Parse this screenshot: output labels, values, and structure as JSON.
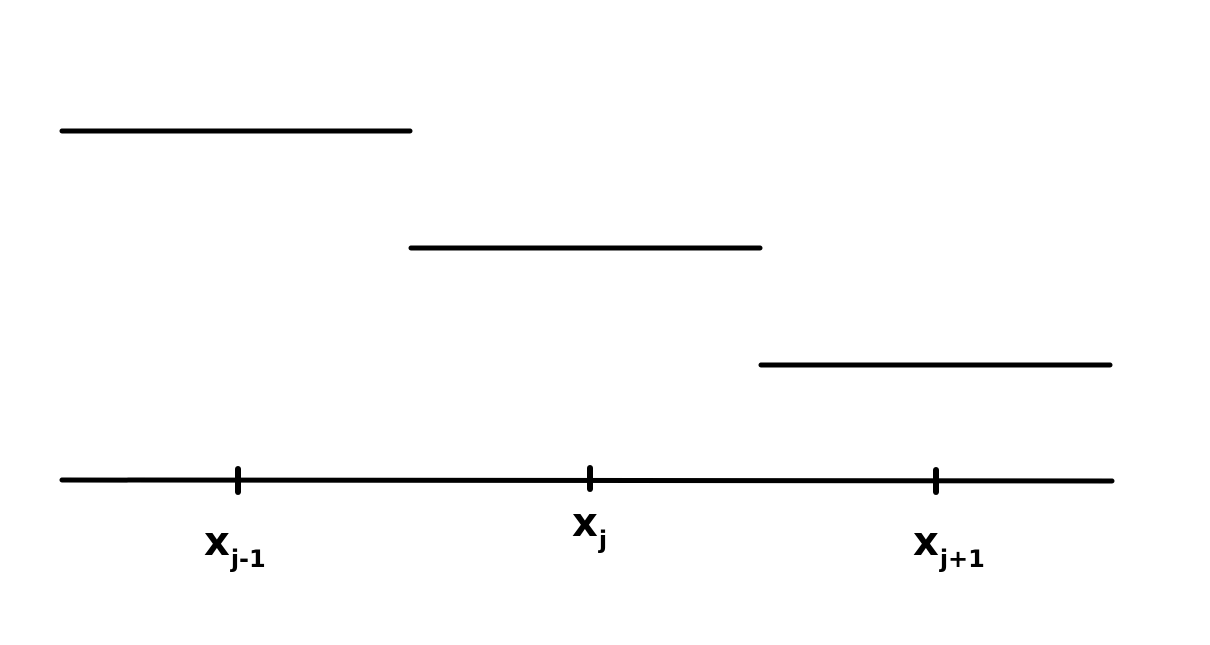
{
  "diagram": {
    "levels": [
      {
        "step": 1,
        "relative_height": 3
      },
      {
        "step": 2,
        "relative_height": 2
      },
      {
        "step": 3,
        "relative_height": 1
      }
    ],
    "ticks": [
      {
        "base": "x",
        "sub": "j-1"
      },
      {
        "base": "x",
        "sub": "j"
      },
      {
        "base": "x",
        "sub": "j+1"
      }
    ],
    "colors": {
      "ink": "#000000",
      "background": "#ffffff"
    }
  }
}
